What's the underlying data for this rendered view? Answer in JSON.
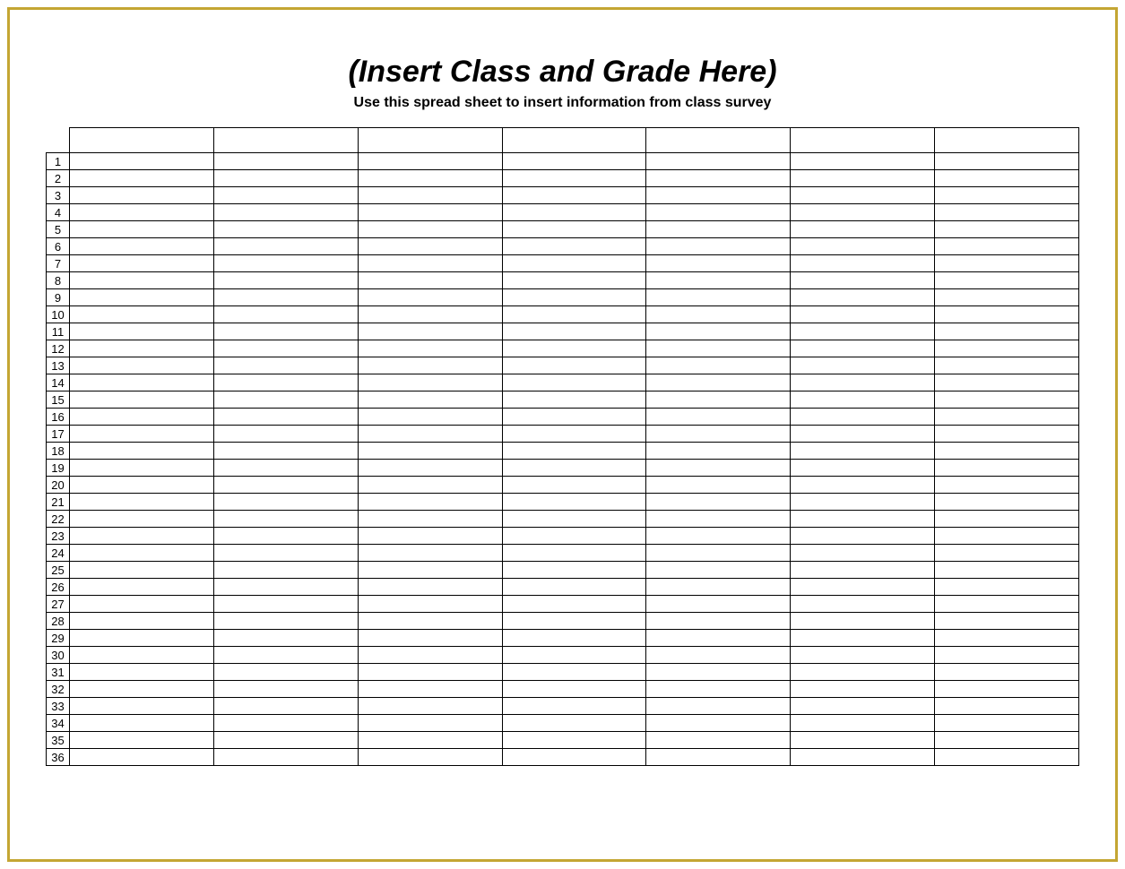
{
  "document": {
    "title": "(Insert Class and Grade Here)",
    "subtitle": "Use this spread sheet to insert information from class survey",
    "title_fontsize": 34,
    "title_fontstyle": "italic",
    "title_fontweight": "bold",
    "subtitle_fontsize": 16,
    "subtitle_fontweight": "bold",
    "background_color": "#ffffff",
    "frame_border_color": "#c4a633",
    "frame_border_width": 3
  },
  "table": {
    "type": "table",
    "num_data_columns": 7,
    "num_data_rows": 36,
    "row_number_column_width": 26,
    "header_row_height": 28,
    "data_row_height": 19,
    "border_color": "#000000",
    "border_width": 1,
    "cell_background": "#ffffff",
    "row_number_fontsize": 13,
    "row_number_align": "center",
    "row_labels": [
      "1",
      "2",
      "3",
      "4",
      "5",
      "6",
      "7",
      "8",
      "9",
      "10",
      "11",
      "12",
      "13",
      "14",
      "15",
      "16",
      "17",
      "18",
      "19",
      "20",
      "21",
      "22",
      "23",
      "24",
      "25",
      "26",
      "27",
      "28",
      "29",
      "30",
      "31",
      "32",
      "33",
      "34",
      "35",
      "36"
    ],
    "column_headers": [
      "",
      "",
      "",
      "",
      "",
      "",
      ""
    ],
    "rows": [
      [
        "",
        "",
        "",
        "",
        "",
        "",
        ""
      ],
      [
        "",
        "",
        "",
        "",
        "",
        "",
        ""
      ],
      [
        "",
        "",
        "",
        "",
        "",
        "",
        ""
      ],
      [
        "",
        "",
        "",
        "",
        "",
        "",
        ""
      ],
      [
        "",
        "",
        "",
        "",
        "",
        "",
        ""
      ],
      [
        "",
        "",
        "",
        "",
        "",
        "",
        ""
      ],
      [
        "",
        "",
        "",
        "",
        "",
        "",
        ""
      ],
      [
        "",
        "",
        "",
        "",
        "",
        "",
        ""
      ],
      [
        "",
        "",
        "",
        "",
        "",
        "",
        ""
      ],
      [
        "",
        "",
        "",
        "",
        "",
        "",
        ""
      ],
      [
        "",
        "",
        "",
        "",
        "",
        "",
        ""
      ],
      [
        "",
        "",
        "",
        "",
        "",
        "",
        ""
      ],
      [
        "",
        "",
        "",
        "",
        "",
        "",
        ""
      ],
      [
        "",
        "",
        "",
        "",
        "",
        "",
        ""
      ],
      [
        "",
        "",
        "",
        "",
        "",
        "",
        ""
      ],
      [
        "",
        "",
        "",
        "",
        "",
        "",
        ""
      ],
      [
        "",
        "",
        "",
        "",
        "",
        "",
        ""
      ],
      [
        "",
        "",
        "",
        "",
        "",
        "",
        ""
      ],
      [
        "",
        "",
        "",
        "",
        "",
        "",
        ""
      ],
      [
        "",
        "",
        "",
        "",
        "",
        "",
        ""
      ],
      [
        "",
        "",
        "",
        "",
        "",
        "",
        ""
      ],
      [
        "",
        "",
        "",
        "",
        "",
        "",
        ""
      ],
      [
        "",
        "",
        "",
        "",
        "",
        "",
        ""
      ],
      [
        "",
        "",
        "",
        "",
        "",
        "",
        ""
      ],
      [
        "",
        "",
        "",
        "",
        "",
        "",
        ""
      ],
      [
        "",
        "",
        "",
        "",
        "",
        "",
        ""
      ],
      [
        "",
        "",
        "",
        "",
        "",
        "",
        ""
      ],
      [
        "",
        "",
        "",
        "",
        "",
        "",
        ""
      ],
      [
        "",
        "",
        "",
        "",
        "",
        "",
        ""
      ],
      [
        "",
        "",
        "",
        "",
        "",
        "",
        ""
      ],
      [
        "",
        "",
        "",
        "",
        "",
        "",
        ""
      ],
      [
        "",
        "",
        "",
        "",
        "",
        "",
        ""
      ],
      [
        "",
        "",
        "",
        "",
        "",
        "",
        ""
      ],
      [
        "",
        "",
        "",
        "",
        "",
        "",
        ""
      ],
      [
        "",
        "",
        "",
        "",
        "",
        "",
        ""
      ],
      [
        "",
        "",
        "",
        "",
        "",
        "",
        ""
      ]
    ]
  }
}
